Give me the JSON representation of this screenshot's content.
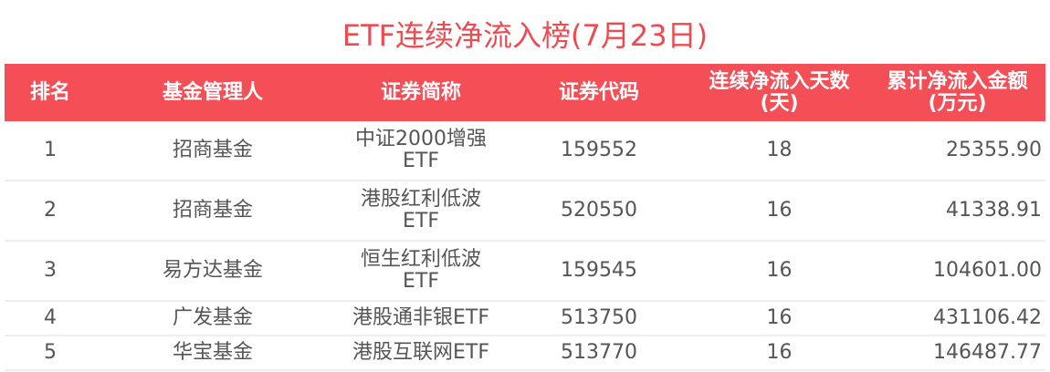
{
  "title": "ETF连续净流入榜(7月23日)",
  "colors": {
    "header_bg": "#f44f57",
    "title": "#ee4a50"
  },
  "headers": [
    "排名",
    "基金管理人",
    "证券简称",
    "证券代码",
    "连续净流入天数(天)",
    "累计净流入金额(万元)"
  ],
  "header_lines": {
    "days": [
      "连续净流入天数",
      "(天)"
    ],
    "amount": [
      "累计净流入金额",
      "(万元)"
    ]
  },
  "rows": [
    {
      "rank": "1",
      "manager": "招商基金",
      "name": [
        "中证2000增强",
        "ETF"
      ],
      "code": "159552",
      "days": "18",
      "amount": "25355.90"
    },
    {
      "rank": "2",
      "manager": "招商基金",
      "name": [
        "港股红利低波",
        "ETF"
      ],
      "code": "520550",
      "days": "16",
      "amount": "41338.91"
    },
    {
      "rank": "3",
      "manager": "易方达基金",
      "name": [
        "恒生红利低波",
        "ETF"
      ],
      "code": "159545",
      "days": "16",
      "amount": "104601.00"
    },
    {
      "rank": "4",
      "manager": "广发基金",
      "name": [
        "港股通非银ETF"
      ],
      "code": "513750",
      "days": "16",
      "amount": "431106.42"
    },
    {
      "rank": "5",
      "manager": "华宝基金",
      "name": [
        "港股互联网ETF"
      ],
      "code": "513770",
      "days": "16",
      "amount": "146487.77"
    }
  ]
}
